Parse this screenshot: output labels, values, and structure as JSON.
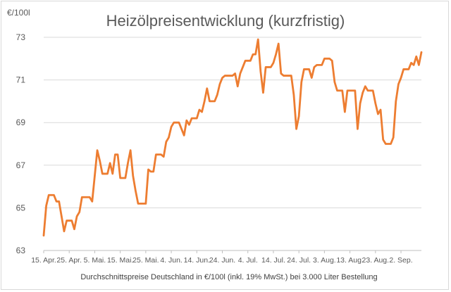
{
  "chart_data": {
    "type": "line",
    "title": "Heizölpreisentwicklung (kurzfristig)",
    "ylabel": "€/100l",
    "xlabel": "Durchschnittspreise Deutschland in €/100l (inkl. 19% MwSt.) bei 3.000 Liter Bestellung",
    "ylim": [
      63,
      73
    ],
    "yticks": [
      "63",
      "65",
      "67",
      "69",
      "71",
      "73"
    ],
    "xticks": [
      "15. Apr.",
      "25. Apr.",
      "5. Mai.",
      "15. Mai.",
      "25. Mai.",
      "4. Jun.",
      "14. Jun.",
      "24. Jun.",
      "4. Jul.",
      "14. Jul.",
      "24. Jul.",
      "3. Aug.",
      "13. Aug.",
      "23. Aug.",
      "2. Sep."
    ],
    "x_unit": "days since 15. Apr.",
    "grid": true,
    "legend": "none",
    "color": "#ed7d31",
    "series": [
      {
        "values": [
          [
            0,
            63.7
          ],
          [
            1,
            65.1
          ],
          [
            2,
            65.6
          ],
          [
            3,
            65.6
          ],
          [
            4,
            65.6
          ],
          [
            5,
            65.3
          ],
          [
            6,
            65.3
          ],
          [
            7,
            64.6
          ],
          [
            8,
            63.9
          ],
          [
            9,
            64.4
          ],
          [
            10,
            64.4
          ],
          [
            11,
            64.4
          ],
          [
            12,
            64.0
          ],
          [
            13,
            64.6
          ],
          [
            14,
            64.8
          ],
          [
            15,
            65.5
          ],
          [
            16,
            65.5
          ],
          [
            17,
            65.5
          ],
          [
            18,
            65.5
          ],
          [
            19,
            65.3
          ],
          [
            20,
            66.5
          ],
          [
            21,
            67.7
          ],
          [
            22,
            67.2
          ],
          [
            23,
            66.6
          ],
          [
            24,
            66.6
          ],
          [
            25,
            66.6
          ],
          [
            26,
            67.1
          ],
          [
            27,
            66.6
          ],
          [
            28,
            67.5
          ],
          [
            29,
            67.5
          ],
          [
            30,
            66.4
          ],
          [
            31,
            66.4
          ],
          [
            32,
            66.4
          ],
          [
            33,
            67.1
          ],
          [
            34,
            67.7
          ],
          [
            35,
            66.5
          ],
          [
            36,
            65.8
          ],
          [
            37,
            65.2
          ],
          [
            38,
            65.2
          ],
          [
            39,
            65.2
          ],
          [
            40,
            65.2
          ],
          [
            41,
            66.8
          ],
          [
            42,
            66.7
          ],
          [
            43,
            66.7
          ],
          [
            44,
            67.5
          ],
          [
            45,
            67.5
          ],
          [
            46,
            67.5
          ],
          [
            47,
            67.4
          ],
          [
            48,
            68.1
          ],
          [
            49,
            68.3
          ],
          [
            50,
            68.8
          ],
          [
            51,
            69.0
          ],
          [
            52,
            69.0
          ],
          [
            53,
            69.0
          ],
          [
            54,
            68.7
          ],
          [
            55,
            68.4
          ],
          [
            56,
            69.1
          ],
          [
            57,
            68.9
          ],
          [
            58,
            69.2
          ],
          [
            59,
            69.2
          ],
          [
            60,
            69.2
          ],
          [
            61,
            69.6
          ],
          [
            62,
            69.5
          ],
          [
            63,
            70.0
          ],
          [
            64,
            70.6
          ],
          [
            65,
            70.0
          ],
          [
            66,
            70.0
          ],
          [
            67,
            70.0
          ],
          [
            68,
            70.3
          ],
          [
            69,
            70.8
          ],
          [
            70,
            71.1
          ],
          [
            71,
            71.2
          ],
          [
            72,
            71.2
          ],
          [
            73,
            71.2
          ],
          [
            74,
            71.2
          ],
          [
            75,
            71.3
          ],
          [
            76,
            70.7
          ],
          [
            77,
            71.3
          ],
          [
            78,
            71.6
          ],
          [
            79,
            71.9
          ],
          [
            80,
            71.9
          ],
          [
            81,
            71.9
          ],
          [
            82,
            72.2
          ],
          [
            83,
            72.2
          ],
          [
            84,
            72.9
          ],
          [
            85,
            71.4
          ],
          [
            86,
            70.4
          ],
          [
            87,
            71.6
          ],
          [
            88,
            71.6
          ],
          [
            89,
            71.6
          ],
          [
            90,
            71.8
          ],
          [
            91,
            72.2
          ],
          [
            92,
            72.7
          ],
          [
            93,
            71.3
          ],
          [
            94,
            71.2
          ],
          [
            95,
            71.2
          ],
          [
            96,
            71.2
          ],
          [
            97,
            71.2
          ],
          [
            98,
            70.3
          ],
          [
            99,
            68.7
          ],
          [
            100,
            69.3
          ],
          [
            101,
            70.9
          ],
          [
            102,
            71.5
          ],
          [
            103,
            71.5
          ],
          [
            104,
            71.5
          ],
          [
            105,
            71.1
          ],
          [
            106,
            71.6
          ],
          [
            107,
            71.7
          ],
          [
            108,
            71.7
          ],
          [
            109,
            71.7
          ],
          [
            110,
            72.0
          ],
          [
            111,
            72.0
          ],
          [
            112,
            72.0
          ],
          [
            113,
            71.9
          ],
          [
            114,
            70.9
          ],
          [
            115,
            70.5
          ],
          [
            116,
            70.5
          ],
          [
            117,
            70.5
          ],
          [
            118,
            69.5
          ],
          [
            119,
            70.5
          ],
          [
            120,
            70.5
          ],
          [
            121,
            70.5
          ],
          [
            122,
            70.5
          ],
          [
            123,
            68.7
          ],
          [
            124,
            69.9
          ],
          [
            125,
            70.4
          ],
          [
            126,
            70.7
          ],
          [
            127,
            70.5
          ],
          [
            128,
            70.5
          ],
          [
            129,
            70.5
          ],
          [
            130,
            69.9
          ],
          [
            131,
            69.4
          ],
          [
            132,
            69.6
          ],
          [
            133,
            68.2
          ],
          [
            134,
            68.0
          ],
          [
            135,
            68.0
          ],
          [
            136,
            68.0
          ],
          [
            137,
            68.3
          ],
          [
            138,
            70.0
          ],
          [
            139,
            70.8
          ],
          [
            140,
            71.1
          ],
          [
            141,
            71.5
          ],
          [
            142,
            71.5
          ],
          [
            143,
            71.5
          ],
          [
            144,
            71.8
          ],
          [
            145,
            71.7
          ],
          [
            146,
            72.1
          ],
          [
            147,
            71.7
          ],
          [
            148,
            72.3
          ]
        ]
      }
    ]
  }
}
